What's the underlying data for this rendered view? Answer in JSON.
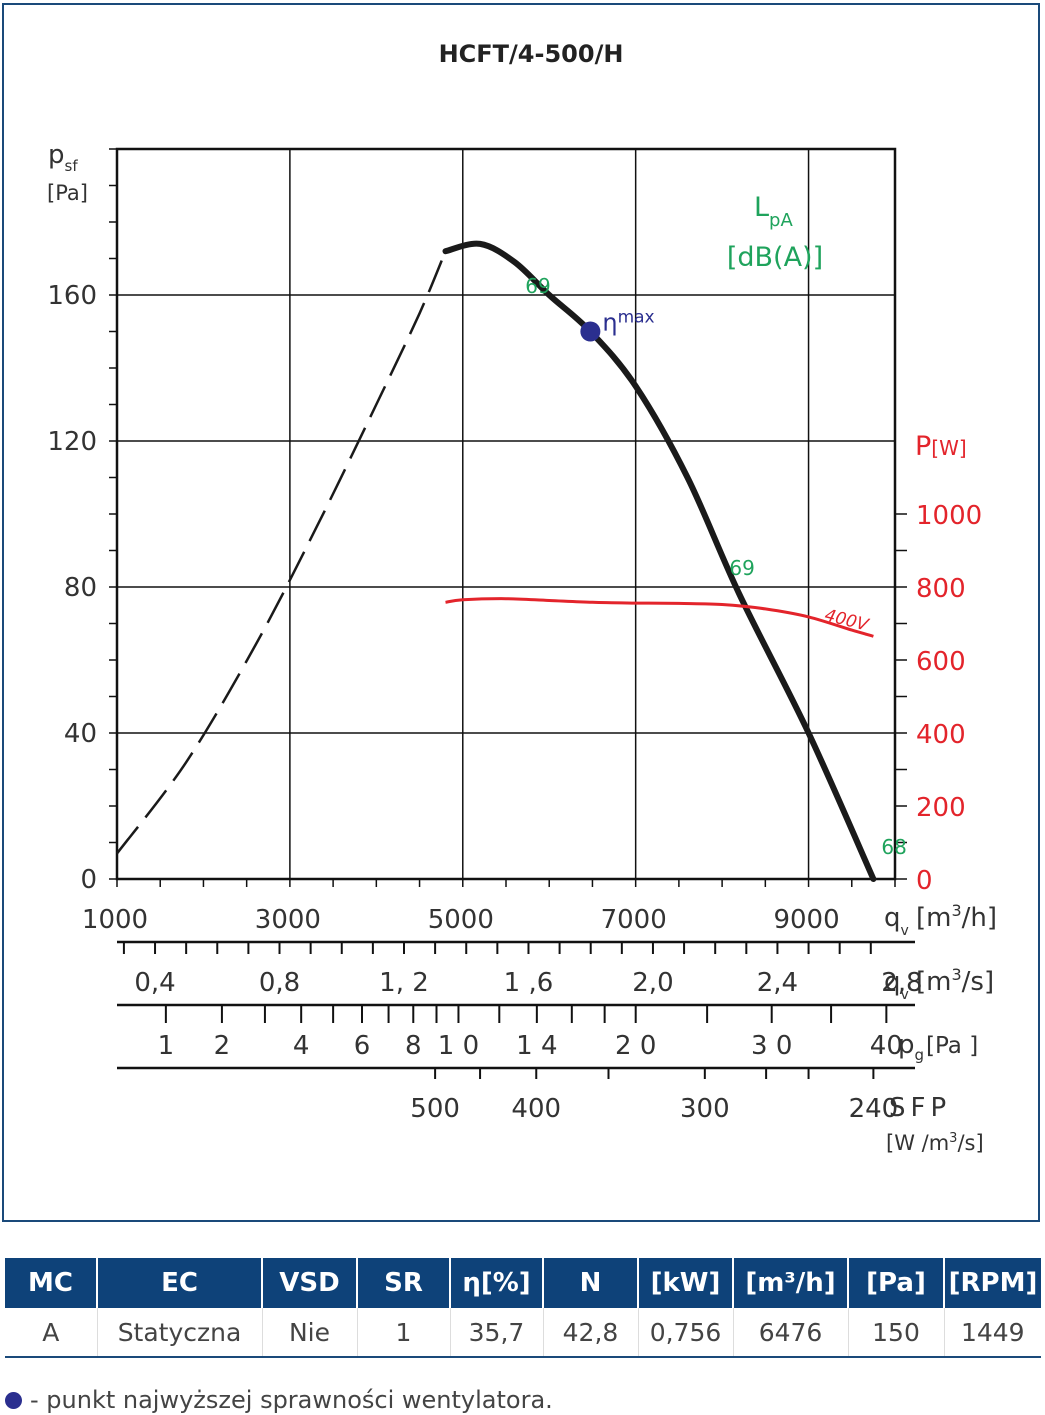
{
  "chart_data": {
    "type": "line",
    "title": "HCFT/4-500/H",
    "y_axis": {
      "label_main": "p",
      "label_sub": "sf",
      "unit": "[Pa]",
      "range": [
        0,
        200
      ],
      "ticks": [
        "0",
        "40",
        "80",
        "120",
        "160"
      ],
      "tick_values": [
        0,
        40,
        80,
        120,
        160
      ]
    },
    "x_axis": {
      "label_main": "q",
      "label_sub": "v",
      "unit_pre": "[m",
      "unit_sup": "3",
      "unit_post": "/h]",
      "range": [
        1000,
        10000
      ],
      "ticks": [
        "1000",
        "3000",
        "5000",
        "7000",
        "9000"
      ],
      "tick_values": [
        1000,
        3000,
        5000,
        7000,
        9000
      ]
    },
    "power_axis": {
      "label": "P",
      "unit": "[W]",
      "range": [
        0,
        1000
      ],
      "ticks": [
        "0",
        "200",
        "400",
        "600",
        "800",
        "1000"
      ],
      "tick_values": [
        0,
        200,
        400,
        600,
        800,
        1000
      ]
    },
    "lpa_label": {
      "line1_main": "L",
      "line1_sub": "pA",
      "line2": "[dB(A)]"
    },
    "series": [
      {
        "style": "dashed",
        "x": [
          1000,
          1800,
          2600,
          3300,
          4000,
          4500,
          4800
        ],
        "y": [
          7,
          32,
          64,
          96,
          130,
          155,
          172
        ]
      },
      {
        "style": "solid",
        "x": [
          4800,
          5200,
          5600,
          6000,
          6476,
          7000,
          7600,
          8200,
          9000,
          9750
        ],
        "y": [
          172,
          174,
          169,
          160,
          150,
          135,
          110,
          78,
          40,
          0
        ]
      },
      {
        "name": "400V",
        "style": "power",
        "axis": "power",
        "x": [
          4800,
          5000,
          5500,
          6000,
          6500,
          7000,
          7500,
          8000,
          8500,
          9000,
          9500,
          9750
        ],
        "y": [
          758,
          765,
          768,
          763,
          758,
          756,
          755,
          752,
          740,
          718,
          682,
          665
        ]
      }
    ],
    "noise_labels": [
      {
        "text": "69",
        "x": 6000,
        "y": 160
      },
      {
        "text": "69",
        "x": 8200,
        "y": 80
      },
      {
        "text": "68",
        "x": 9750,
        "y": 3
      }
    ],
    "eta_point": {
      "x": 6476,
      "y": 150,
      "label_main": "η",
      "label_sub": "max"
    },
    "extra_scales": [
      {
        "name": "qv_m3s",
        "label_main": "q",
        "label_sub": "v",
        "unit_pre": "[m",
        "unit_sup": "3",
        "unit_post": "/s]",
        "ticks": [
          "0,4",
          "0,8",
          "1, 2",
          "1 ,6",
          "2,0",
          "2,4",
          "2,8"
        ],
        "tick_values": [
          0.4,
          0.8,
          1.2,
          1.6,
          2.0,
          2.4,
          2.8
        ]
      },
      {
        "name": "pg",
        "label_main": "p",
        "label_sub": "g",
        "unit": "[Pa ]",
        "ticks": [
          "1",
          "2",
          "4",
          "6",
          "8",
          "1 0",
          "1 4",
          "2 0",
          "3 0",
          "40"
        ],
        "tick_values": [
          1,
          2,
          4,
          6,
          8,
          10,
          14,
          20,
          30,
          40
        ]
      },
      {
        "name": "sfp",
        "label": "SFP",
        "unit_pre": "[W /m",
        "unit_sup": "3",
        "unit_post": "/s]",
        "ticks": [
          "500",
          "400",
          "300",
          "240"
        ],
        "tick_values": [
          500,
          400,
          300,
          240
        ]
      }
    ],
    "colors": {
      "curve": "#1a1a1a",
      "power": "#e3242b",
      "noise": "#1fa35c",
      "eta": "#2b2f8f",
      "grid": "#111111",
      "axis_text": "#333333"
    }
  },
  "table": {
    "headers": [
      "MC",
      "EC",
      "VSD",
      "SR",
      "η[%]",
      "N",
      "[kW]",
      "[m³/h]",
      "[Pa]",
      "[RPM]"
    ],
    "row": [
      "A",
      "Statyczna",
      "Nie",
      "1",
      "35,7",
      "42,8",
      "0,756",
      "6476",
      "150",
      "1449"
    ]
  },
  "footnote": "- punkt najwyższej sprawności wentylatora."
}
